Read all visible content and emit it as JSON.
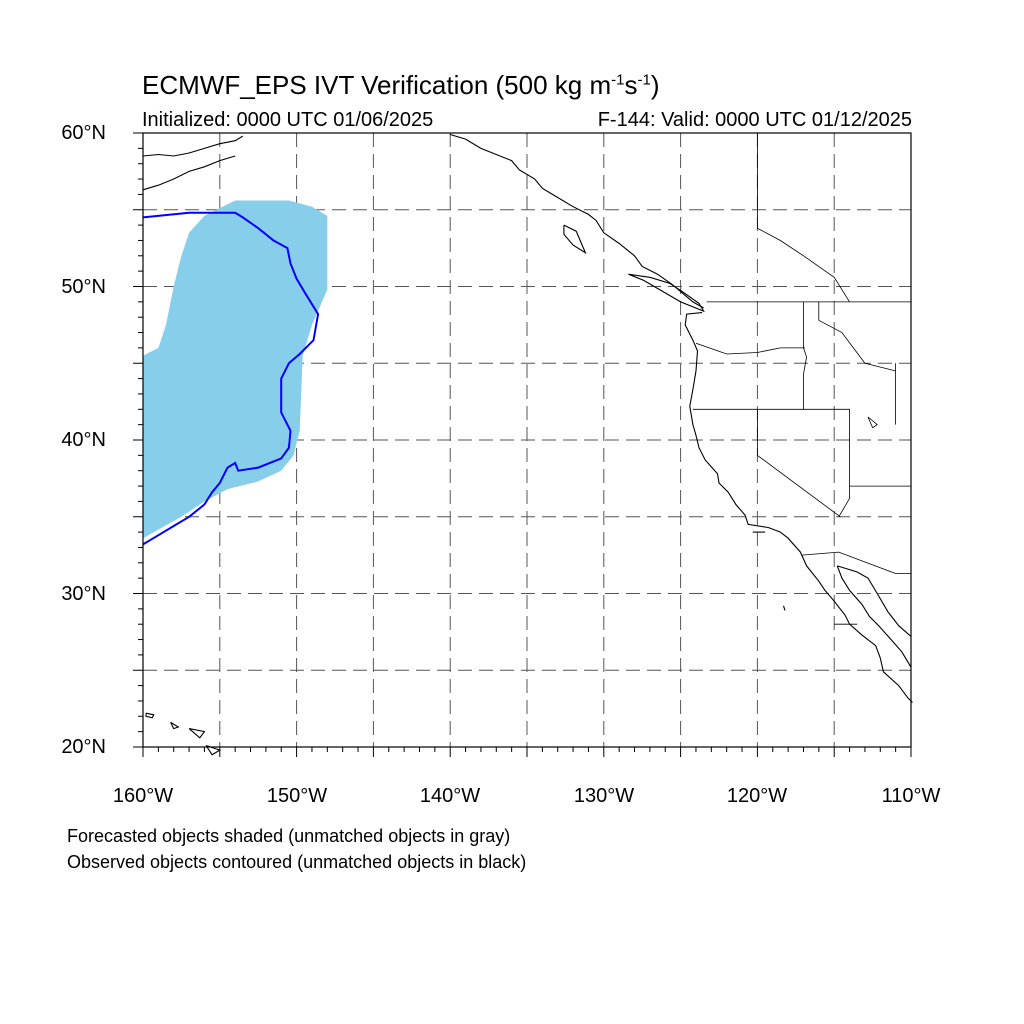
{
  "header": {
    "title_main": "ECMWF_EPS IVT Verification (500 kg m",
    "title_exp1": "-1",
    "title_mid": "s",
    "title_exp2": "-1",
    "title_end": ")",
    "initialized": "Initialized: 0000 UTC 01/06/2025",
    "valid": "F-144: Valid: 0000 UTC 01/12/2025"
  },
  "map": {
    "lon_range": [
      -160,
      -110
    ],
    "lat_range": [
      20,
      60
    ],
    "lat_labels": [
      "60°N",
      "50°N",
      "40°N",
      "30°N",
      "20°N"
    ],
    "lon_labels": [
      "160°W",
      "150°W",
      "140°W",
      "130°W",
      "120°W",
      "110°W"
    ],
    "grid": "dashed, every 5°",
    "colors": {
      "forecast_fill": "#87ceeb",
      "observed_contour": "#0000ff",
      "coastline": "#000000",
      "grid": "#555555"
    },
    "forecast_object": {
      "label": "matched forecast object (shaded)",
      "polygon_lonlat": [
        [
          -160,
          33.6
        ],
        [
          -157.5,
          35.0
        ],
        [
          -156.0,
          36.0
        ],
        [
          -154.5,
          36.8
        ],
        [
          -152.5,
          37.3
        ],
        [
          -151.0,
          38.0
        ],
        [
          -150.2,
          39.0
        ],
        [
          -149.8,
          40.6
        ],
        [
          -149.6,
          45.5
        ],
        [
          -149.0,
          47.5
        ],
        [
          -148.0,
          49.8
        ],
        [
          -148.0,
          54.6
        ],
        [
          -149.0,
          55.2
        ],
        [
          -150.5,
          55.6
        ],
        [
          -154.0,
          55.6
        ],
        [
          -156.0,
          54.6
        ],
        [
          -157.0,
          53.5
        ],
        [
          -157.5,
          52.0
        ],
        [
          -158.0,
          50.0
        ],
        [
          -158.5,
          47.5
        ],
        [
          -159.0,
          46.0
        ],
        [
          -160,
          45.5
        ]
      ]
    },
    "observed_object": {
      "label": "matched observed object (contoured)",
      "polyline_lonlat": [
        [
          -160,
          33.2
        ],
        [
          -159.0,
          33.8
        ],
        [
          -158.0,
          34.4
        ],
        [
          -157.0,
          35.0
        ],
        [
          -156.0,
          35.8
        ],
        [
          -155.5,
          36.6
        ],
        [
          -155.0,
          37.2
        ],
        [
          -154.5,
          38.2
        ],
        [
          -154.0,
          38.5
        ],
        [
          -153.8,
          38.0
        ],
        [
          -152.5,
          38.2
        ],
        [
          -151.0,
          38.8
        ],
        [
          -150.5,
          39.5
        ],
        [
          -150.4,
          40.6
        ],
        [
          -151.0,
          41.8
        ],
        [
          -151.0,
          43.2
        ],
        [
          -151.0,
          44.0
        ],
        [
          -150.5,
          45.0
        ],
        [
          -149.8,
          45.6
        ],
        [
          -148.9,
          46.5
        ],
        [
          -148.6,
          48.2
        ],
        [
          -149.4,
          49.5
        ],
        [
          -150.0,
          50.5
        ],
        [
          -150.4,
          51.5
        ],
        [
          -150.6,
          52.5
        ],
        [
          -151.5,
          53.0
        ],
        [
          -152.5,
          53.8
        ],
        [
          -153.5,
          54.5
        ],
        [
          -154.0,
          54.8
        ],
        [
          -157.0,
          54.8
        ],
        [
          -160,
          54.5
        ]
      ]
    },
    "coastlines": {
      "alaska_south": [
        [
          -160,
          58.5
        ],
        [
          -159.0,
          58.6
        ],
        [
          -158.0,
          58.5
        ],
        [
          -157.0,
          58.7
        ],
        [
          -156.0,
          59.0
        ],
        [
          -155.0,
          59.3
        ],
        [
          -154.0,
          59.5
        ],
        [
          -153.5,
          59.8
        ]
      ],
      "alaska_peninsula": [
        [
          -160,
          56.3
        ],
        [
          -159.0,
          56.6
        ],
        [
          -158.0,
          57.0
        ],
        [
          -157.0,
          57.5
        ],
        [
          -156.0,
          57.8
        ],
        [
          -155.0,
          58.2
        ],
        [
          -154.0,
          58.5
        ]
      ],
      "gulf_of_alaska": [
        [
          -140.0,
          59.9
        ],
        [
          -139.0,
          59.6
        ],
        [
          -138.0,
          59.0
        ],
        [
          -137.0,
          58.6
        ],
        [
          -136.0,
          58.2
        ],
        [
          -135.5,
          57.6
        ],
        [
          -134.5,
          57.0
        ],
        [
          -134.0,
          56.4
        ],
        [
          -133.0,
          55.8
        ],
        [
          -132.0,
          55.2
        ],
        [
          -131.0,
          54.7
        ],
        [
          -130.5,
          54.3
        ],
        [
          -130.0,
          53.5
        ],
        [
          -129.0,
          52.8
        ],
        [
          -128.0,
          52.0
        ],
        [
          -127.5,
          51.3
        ],
        [
          -126.5,
          50.8
        ],
        [
          -125.5,
          50.1
        ],
        [
          -124.8,
          49.5
        ],
        [
          -124.2,
          49.0
        ],
        [
          -123.5,
          48.6
        ]
      ],
      "haida_gwaii": [
        [
          -132.6,
          54.0
        ],
        [
          -131.8,
          53.6
        ],
        [
          -131.5,
          52.9
        ],
        [
          -131.2,
          52.2
        ],
        [
          -132.0,
          52.7
        ],
        [
          -132.6,
          53.4
        ],
        [
          -132.6,
          54.0
        ]
      ],
      "vancouver_island": [
        [
          -128.4,
          50.8
        ],
        [
          -127.4,
          50.4
        ],
        [
          -126.2,
          49.7
        ],
        [
          -125.0,
          49.0
        ],
        [
          -123.5,
          48.4
        ],
        [
          -123.8,
          48.9
        ],
        [
          -124.8,
          49.6
        ],
        [
          -125.7,
          50.2
        ],
        [
          -127.0,
          50.6
        ],
        [
          -128.4,
          50.8
        ]
      ],
      "us_west_coast": [
        [
          -123.6,
          48.3
        ],
        [
          -124.6,
          48.2
        ],
        [
          -124.7,
          47.5
        ],
        [
          -124.2,
          46.5
        ],
        [
          -123.9,
          45.8
        ],
        [
          -124.0,
          44.5
        ],
        [
          -124.2,
          43.3
        ],
        [
          -124.4,
          42.2
        ],
        [
          -124.2,
          41.0
        ],
        [
          -124.0,
          40.3
        ],
        [
          -123.8,
          39.5
        ],
        [
          -123.4,
          38.7
        ],
        [
          -122.6,
          37.8
        ],
        [
          -122.5,
          37.2
        ],
        [
          -121.9,
          36.6
        ],
        [
          -121.4,
          35.8
        ],
        [
          -120.8,
          35.1
        ],
        [
          -120.6,
          34.5
        ],
        [
          -119.3,
          34.3
        ],
        [
          -118.5,
          34.0
        ],
        [
          -118.0,
          33.6
        ],
        [
          -117.2,
          32.7
        ],
        [
          -116.8,
          31.8
        ],
        [
          -116.0,
          30.8
        ],
        [
          -115.6,
          30.2
        ],
        [
          -115.0,
          29.5
        ],
        [
          -114.3,
          28.6
        ],
        [
          -114.0,
          28.0
        ],
        [
          -113.2,
          27.3
        ],
        [
          -112.3,
          26.6
        ],
        [
          -112.0,
          25.8
        ],
        [
          -111.8,
          24.9
        ],
        [
          -110.8,
          24.0
        ],
        [
          -110.2,
          23.2
        ],
        [
          -109.9,
          22.9
        ]
      ],
      "gulf_of_california": [
        [
          -114.8,
          31.8
        ],
        [
          -114.5,
          31.0
        ],
        [
          -114.0,
          30.2
        ],
        [
          -113.2,
          29.3
        ],
        [
          -112.7,
          28.5
        ],
        [
          -112.1,
          27.9
        ],
        [
          -111.3,
          27.0
        ],
        [
          -110.6,
          26.2
        ],
        [
          -110.0,
          25.2
        ]
      ],
      "mainland_mexico": [
        [
          -114.8,
          31.8
        ],
        [
          -113.5,
          31.4
        ],
        [
          -112.8,
          31.0
        ],
        [
          -112.2,
          30.0
        ],
        [
          -111.5,
          28.8
        ],
        [
          -110.8,
          27.9
        ],
        [
          -110.0,
          27.2
        ]
      ],
      "hawaii_1": [
        [
          -159.8,
          22.2
        ],
        [
          -159.3,
          22.1
        ],
        [
          -159.4,
          21.9
        ],
        [
          -159.8,
          22.0
        ],
        [
          -159.8,
          22.2
        ]
      ],
      "hawaii_2": [
        [
          -158.2,
          21.6
        ],
        [
          -157.7,
          21.3
        ],
        [
          -158.0,
          21.2
        ],
        [
          -158.2,
          21.6
        ]
      ],
      "hawaii_3": [
        [
          -157.0,
          21.2
        ],
        [
          -156.0,
          21.0
        ],
        [
          -156.3,
          20.6
        ],
        [
          -157.0,
          21.2
        ]
      ],
      "hawaii_4": [
        [
          -155.9,
          20.1
        ],
        [
          -155.0,
          19.8
        ],
        [
          -155.5,
          19.5
        ],
        [
          -155.9,
          20.1
        ]
      ],
      "channel_islands": [
        [
          -120.3,
          34.0
        ],
        [
          -119.5,
          34.0
        ]
      ],
      "guadalupe_island": [
        [
          -118.3,
          29.2
        ],
        [
          -118.2,
          28.9
        ]
      ]
    },
    "borders": {
      "canada_us": [
        [
          -123.3,
          49.0
        ],
        [
          -110,
          49.0
        ]
      ],
      "washington_oregon": [
        [
          -124.0,
          46.3
        ],
        [
          -122.0,
          45.6
        ],
        [
          -120.0,
          45.7
        ],
        [
          -118.5,
          46.0
        ],
        [
          -116.9,
          46.0
        ]
      ],
      "idaho_west": [
        [
          -117.0,
          49.0
        ],
        [
          -117.0,
          46.0
        ],
        [
          -116.8,
          45.4
        ],
        [
          -117.0,
          44.3
        ],
        [
          -117.0,
          42.0
        ]
      ],
      "oregon_california": [
        [
          -124.2,
          42.0
        ],
        [
          -114.0,
          42.0
        ]
      ],
      "california_nevada": [
        [
          -120.0,
          42.0
        ],
        [
          -120.0,
          39.0
        ],
        [
          -114.6,
          35.0
        ]
      ],
      "nevada_arizona": [
        [
          -114.0,
          42.0
        ],
        [
          -114.0,
          36.2
        ],
        [
          -114.7,
          35.0
        ]
      ],
      "arizona_utah": [
        [
          -114.0,
          37.0
        ],
        [
          -110,
          37.0
        ]
      ],
      "us_mexico": [
        [
          -117.1,
          32.5
        ],
        [
          -114.7,
          32.7
        ],
        [
          -111.0,
          31.3
        ],
        [
          -110,
          31.3
        ]
      ],
      "baja_state": [
        [
          -115.0,
          28.0
        ],
        [
          -113.5,
          28.0
        ]
      ],
      "montana_idaho": [
        [
          -116.0,
          49.0
        ],
        [
          -116.0,
          47.8
        ],
        [
          -114.5,
          47.0
        ],
        [
          -113.0,
          45.0
        ],
        [
          -111.0,
          44.5
        ]
      ],
      "wyoming_idaho": [
        [
          -111.0,
          45.0
        ],
        [
          -111.0,
          41.0
        ]
      ],
      "bc_alberta": [
        [
          -120.0,
          60.0
        ],
        [
          -120.0,
          53.8
        ],
        [
          -118.5,
          53.0
        ],
        [
          -117.0,
          52.0
        ],
        [
          -115.0,
          50.6
        ],
        [
          -114.0,
          49.0
        ]
      ],
      "great_salt_lake": [
        [
          -112.8,
          41.5
        ],
        [
          -112.2,
          41.0
        ],
        [
          -112.5,
          40.8
        ],
        [
          -112.8,
          41.5
        ]
      ]
    }
  },
  "notes": {
    "forecast": "Forecasted objects shaded (unmatched objects in gray)",
    "observed": "Observed objects contoured (unmatched objects in black)"
  }
}
